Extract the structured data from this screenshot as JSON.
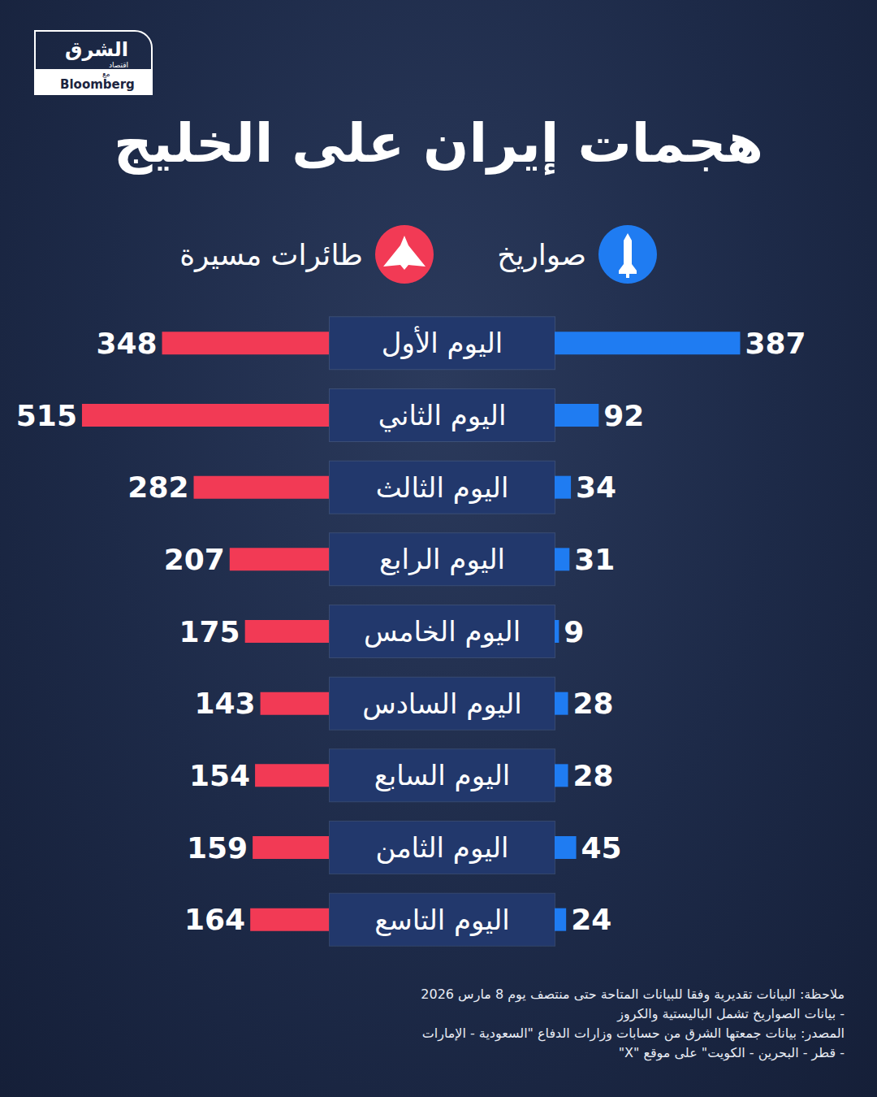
{
  "chart_data": {
    "type": "bar",
    "orientation": "horizontal",
    "title": "هجمات إيران على الخليج",
    "categories": [
      "اليوم الأول",
      "اليوم الثاني",
      "اليوم الثالث",
      "اليوم الرابع",
      "اليوم الخامس",
      "اليوم السادس",
      "اليوم السابع",
      "اليوم الثامن",
      "اليوم التاسع"
    ],
    "series": [
      {
        "name": "صواريخ",
        "color": "#1f7cf2",
        "values": [
          387,
          92,
          34,
          31,
          9,
          28,
          28,
          45,
          24
        ]
      },
      {
        "name": "طائرات مسيرة",
        "color": "#f23a55",
        "values": [
          348,
          515,
          282,
          207,
          175,
          143,
          154,
          159,
          164
        ]
      }
    ],
    "xlim": [
      0,
      520
    ],
    "data_labels": true,
    "tick_labels": "y",
    "grid": false,
    "legend": "top",
    "annotations": [
      "ملاحظة: البيانات تقديرية وفقا للبيانات المتاحة حتى منتصف يوم 8 مارس 2026",
      "- بيانات الصواريخ تشمل الباليستية والكروز",
      "المصدر: بيانات جمعتها الشرق من حسابات وزارات الدفاع \"السعودية - الإمارات",
      "- قطر - البحرين - الكويت\" على موقع \"X\""
    ]
  },
  "logo": {
    "name": "الشرق",
    "sub": "اقتصاد",
    "with": "مع",
    "partner": "Bloomberg"
  }
}
